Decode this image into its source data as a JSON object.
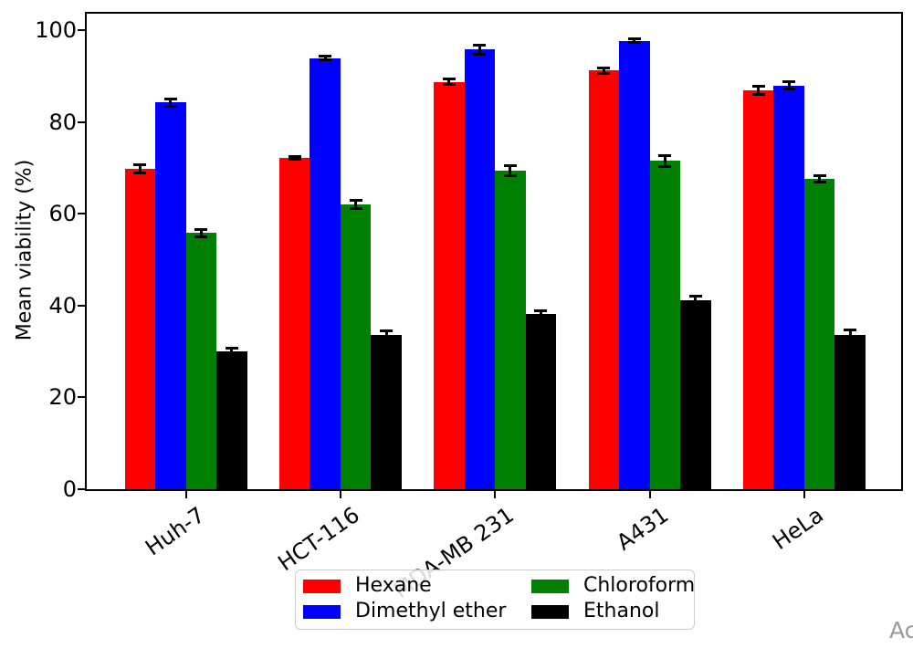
{
  "chart_data": {
    "type": "bar",
    "title": "",
    "xlabel": "",
    "ylabel": "Mean viability (%)",
    "categories": [
      "Huh-7",
      "HCT-116",
      "MDA-MB 231",
      "A431",
      "HeLa"
    ],
    "series": [
      {
        "name": "Hexane",
        "color": "#ff0000",
        "values": [
          69.8,
          72.2,
          88.7,
          91.2,
          86.9
        ],
        "errors": [
          1.0,
          0.4,
          0.7,
          0.7,
          1.0
        ]
      },
      {
        "name": "Dimethyl ether",
        "color": "#0000ff",
        "values": [
          84.3,
          93.9,
          95.8,
          97.7,
          87.9
        ],
        "errors": [
          0.9,
          0.5,
          1.1,
          0.5,
          0.9
        ]
      },
      {
        "name": "Chloroform",
        "color": "#008000",
        "values": [
          55.8,
          62.0,
          69.4,
          71.5,
          67.6
        ],
        "errors": [
          0.9,
          1.0,
          1.2,
          1.3,
          0.8
        ]
      },
      {
        "name": "Ethanol",
        "color": "#000000",
        "values": [
          30.1,
          33.7,
          38.2,
          41.2,
          33.6
        ],
        "errors": [
          0.7,
          0.9,
          0.8,
          0.9,
          1.2
        ]
      }
    ],
    "y_ticks": [
      0,
      20,
      40,
      60,
      80,
      100
    ],
    "y_tick_labels": [
      "0",
      "20",
      "40",
      "60",
      "80",
      "100"
    ],
    "ylim": [
      0,
      103.6
    ],
    "grid": false,
    "error_bars": true,
    "legend_position": "bottom-center",
    "legend_columns": 2
  },
  "watermark": {
    "text": "Ac"
  }
}
